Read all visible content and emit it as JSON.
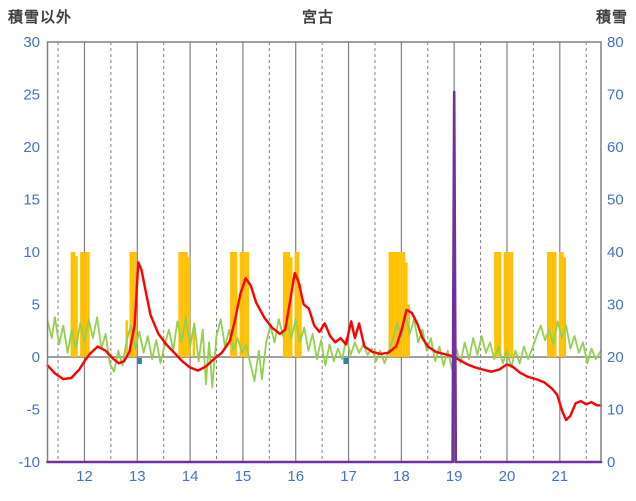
{
  "chart_data": {
    "type": "combo",
    "title": "宮古",
    "colors": {
      "background": "#FFFFFF",
      "grid": "#808080",
      "frame": "#808080",
      "tick_text": "#4472C4",
      "header_text": "#3F3F3F",
      "orange_bars": "#FFC000",
      "green_line": "#92D050",
      "red_line": "#FF0000",
      "purple_line": "#7030A0",
      "blue_marks": "#31859C"
    },
    "axis_left": {
      "label": "積雪以外",
      "min": -10,
      "max": 30,
      "ticks": [
        30,
        25,
        20,
        15,
        10,
        5,
        0,
        -5,
        -10
      ]
    },
    "axis_right": {
      "label": "積雪",
      "min": 0,
      "max": 80,
      "ticks": [
        80,
        70,
        60,
        50,
        40,
        30,
        20,
        10,
        0
      ]
    },
    "axis_x": {
      "min": 11.3,
      "max": 21.78,
      "ticks": [
        12,
        13,
        14,
        15,
        16,
        17,
        18,
        19,
        20,
        21
      ],
      "dashed_gridlines": [
        11.5,
        12.5,
        13.5,
        14.5,
        15.5,
        16.5,
        17.5,
        18.5,
        19.5,
        20.5,
        21.5
      ]
    },
    "series": {
      "orange_bars": {
        "type": "bar",
        "axis": "left",
        "color": "#FFC000",
        "bar_width_days": 0.045,
        "points": [
          [
            11.76,
            10
          ],
          [
            11.805,
            10
          ],
          [
            11.85,
            9.6
          ],
          [
            11.94,
            10
          ],
          [
            11.985,
            10
          ],
          [
            12.03,
            10
          ],
          [
            12.075,
            10
          ],
          [
            12.8,
            3.5
          ],
          [
            12.875,
            10
          ],
          [
            12.92,
            10
          ],
          [
            12.965,
            10
          ],
          [
            13.8,
            10
          ],
          [
            13.845,
            10
          ],
          [
            13.89,
            10
          ],
          [
            13.935,
            10
          ],
          [
            13.98,
            9.5
          ],
          [
            14.07,
            2.5
          ],
          [
            14.78,
            10
          ],
          [
            14.825,
            10
          ],
          [
            14.87,
            10
          ],
          [
            14.96,
            10
          ],
          [
            15.005,
            10
          ],
          [
            15.05,
            10
          ],
          [
            15.095,
            10
          ],
          [
            15.78,
            10
          ],
          [
            15.825,
            10
          ],
          [
            15.87,
            10
          ],
          [
            15.915,
            9.5
          ],
          [
            16.0,
            10
          ],
          [
            16.045,
            10
          ],
          [
            16.09,
            7
          ],
          [
            17.78,
            10
          ],
          [
            17.825,
            10
          ],
          [
            17.87,
            10
          ],
          [
            17.915,
            10
          ],
          [
            17.96,
            10
          ],
          [
            18.005,
            10
          ],
          [
            18.05,
            10
          ],
          [
            18.095,
            9
          ],
          [
            18.14,
            5
          ],
          [
            19.78,
            10
          ],
          [
            19.825,
            10
          ],
          [
            19.87,
            10
          ],
          [
            19.96,
            10
          ],
          [
            20.005,
            10
          ],
          [
            20.05,
            10
          ],
          [
            20.095,
            10
          ],
          [
            20.78,
            10
          ],
          [
            20.825,
            10
          ],
          [
            20.87,
            10
          ],
          [
            20.915,
            10
          ],
          [
            21.005,
            10
          ],
          [
            21.05,
            10
          ],
          [
            21.095,
            9.5
          ]
        ]
      },
      "green_line": {
        "type": "line",
        "axis": "left",
        "color": "#92D050",
        "width": 1.8,
        "points": [
          [
            11.3,
            3.5
          ],
          [
            11.38,
            1.8
          ],
          [
            11.44,
            3.8
          ],
          [
            11.52,
            1.2
          ],
          [
            11.6,
            3.0
          ],
          [
            11.68,
            0.4
          ],
          [
            11.76,
            2.6
          ],
          [
            11.84,
            0.8
          ],
          [
            11.92,
            3.2
          ],
          [
            12.0,
            1.4
          ],
          [
            12.08,
            3.6
          ],
          [
            12.16,
            1.8
          ],
          [
            12.24,
            3.8
          ],
          [
            12.32,
            0.8
          ],
          [
            12.4,
            2.2
          ],
          [
            12.48,
            -0.6
          ],
          [
            12.56,
            -1.4
          ],
          [
            12.64,
            0.6
          ],
          [
            12.72,
            -0.8
          ],
          [
            12.8,
            1.6
          ],
          [
            12.88,
            3.0
          ],
          [
            12.96,
            0.8
          ],
          [
            13.04,
            2.4
          ],
          [
            13.12,
            0.4
          ],
          [
            13.2,
            2.0
          ],
          [
            13.28,
            -0.2
          ],
          [
            13.36,
            1.6
          ],
          [
            13.44,
            -0.6
          ],
          [
            13.52,
            1.2
          ],
          [
            13.6,
            2.6
          ],
          [
            13.68,
            0.6
          ],
          [
            13.76,
            3.4
          ],
          [
            13.84,
            1.4
          ],
          [
            13.92,
            3.8
          ],
          [
            14.0,
            1.0
          ],
          [
            14.08,
            3.2
          ],
          [
            14.16,
            -0.4
          ],
          [
            14.24,
            2.6
          ],
          [
            14.3,
            -2.6
          ],
          [
            14.36,
            1.4
          ],
          [
            14.42,
            -2.9
          ],
          [
            14.5,
            2.0
          ],
          [
            14.58,
            3.6
          ],
          [
            14.66,
            1.0
          ],
          [
            14.74,
            2.6
          ],
          [
            14.82,
            0.6
          ],
          [
            14.9,
            1.8
          ],
          [
            14.98,
            0.4
          ],
          [
            15.06,
            1.2
          ],
          [
            15.14,
            -0.6
          ],
          [
            15.22,
            -2.3
          ],
          [
            15.3,
            0.6
          ],
          [
            15.36,
            -2.1
          ],
          [
            15.44,
            1.4
          ],
          [
            15.52,
            3.0
          ],
          [
            15.6,
            1.4
          ],
          [
            15.68,
            3.6
          ],
          [
            15.76,
            2.0
          ],
          [
            15.84,
            3.2
          ],
          [
            15.92,
            1.8
          ],
          [
            16.0,
            3.6
          ],
          [
            16.08,
            1.4
          ],
          [
            16.16,
            2.8
          ],
          [
            16.24,
            0.6
          ],
          [
            16.32,
            2.2
          ],
          [
            16.4,
            -0.2
          ],
          [
            16.48,
            1.6
          ],
          [
            16.56,
            -0.8
          ],
          [
            16.64,
            1.2
          ],
          [
            16.72,
            -0.4
          ],
          [
            16.8,
            0.8
          ],
          [
            16.88,
            -0.2
          ],
          [
            16.96,
            1.8
          ],
          [
            17.04,
            0.2
          ],
          [
            17.12,
            1.4
          ],
          [
            17.2,
            0.4
          ],
          [
            17.28,
            1.2
          ],
          [
            17.36,
            0.2
          ],
          [
            17.44,
            0.8
          ],
          [
            17.52,
            -0.4
          ],
          [
            17.6,
            0.6
          ],
          [
            17.68,
            -0.6
          ],
          [
            17.76,
            0.6
          ],
          [
            17.84,
            1.6
          ],
          [
            17.92,
            3.2
          ],
          [
            18.0,
            1.8
          ],
          [
            18.08,
            4.0
          ],
          [
            18.16,
            2.2
          ],
          [
            18.24,
            3.6
          ],
          [
            18.32,
            1.4
          ],
          [
            18.4,
            2.6
          ],
          [
            18.48,
            0.6
          ],
          [
            18.56,
            1.8
          ],
          [
            18.64,
            -0.4
          ],
          [
            18.72,
            1.0
          ],
          [
            18.8,
            -0.8
          ],
          [
            18.88,
            0.6
          ],
          [
            18.96,
            -1.2
          ],
          [
            19.04,
            0.8
          ],
          [
            19.12,
            -0.6
          ],
          [
            19.2,
            1.4
          ],
          [
            19.28,
            -0.2
          ],
          [
            19.36,
            1.8
          ],
          [
            19.44,
            0.2
          ],
          [
            19.52,
            2.0
          ],
          [
            19.6,
            0.4
          ],
          [
            19.68,
            1.4
          ],
          [
            19.76,
            -0.2
          ],
          [
            19.84,
            1.0
          ],
          [
            19.92,
            -0.6
          ],
          [
            20.0,
            0.6
          ],
          [
            20.08,
            -1.0
          ],
          [
            20.16,
            0.6
          ],
          [
            20.24,
            -0.6
          ],
          [
            20.32,
            1.0
          ],
          [
            20.4,
            -0.2
          ],
          [
            20.48,
            0.8
          ],
          [
            20.56,
            2.0
          ],
          [
            20.64,
            3.0
          ],
          [
            20.72,
            1.6
          ],
          [
            20.8,
            2.6
          ],
          [
            20.88,
            1.2
          ],
          [
            20.96,
            3.4
          ],
          [
            21.04,
            1.8
          ],
          [
            21.12,
            3.0
          ],
          [
            21.2,
            0.8
          ],
          [
            21.28,
            2.0
          ],
          [
            21.36,
            0.4
          ],
          [
            21.44,
            1.4
          ],
          [
            21.52,
            -0.6
          ],
          [
            21.6,
            0.8
          ],
          [
            21.68,
            -0.2
          ],
          [
            21.78,
            0.6
          ]
        ]
      },
      "red_line": {
        "type": "line",
        "axis": "left",
        "color": "#FF0000",
        "width": 2.4,
        "points": [
          [
            11.3,
            -0.8
          ],
          [
            11.45,
            -1.6
          ],
          [
            11.6,
            -2.1
          ],
          [
            11.75,
            -2.0
          ],
          [
            11.9,
            -1.2
          ],
          [
            12.0,
            -0.4
          ],
          [
            12.1,
            0.3
          ],
          [
            12.25,
            1.0
          ],
          [
            12.4,
            0.6
          ],
          [
            12.55,
            -0.2
          ],
          [
            12.65,
            -0.6
          ],
          [
            12.75,
            -0.4
          ],
          [
            12.85,
            0.5
          ],
          [
            12.95,
            3.0
          ],
          [
            13.02,
            9.0
          ],
          [
            13.08,
            8.3
          ],
          [
            13.15,
            6.5
          ],
          [
            13.25,
            4.0
          ],
          [
            13.4,
            2.2
          ],
          [
            13.55,
            1.2
          ],
          [
            13.7,
            0.4
          ],
          [
            13.85,
            -0.4
          ],
          [
            14.0,
            -1.0
          ],
          [
            14.15,
            -1.3
          ],
          [
            14.3,
            -0.9
          ],
          [
            14.45,
            -0.2
          ],
          [
            14.6,
            0.4
          ],
          [
            14.75,
            1.5
          ],
          [
            14.85,
            3.5
          ],
          [
            14.95,
            6.0
          ],
          [
            15.05,
            7.5
          ],
          [
            15.15,
            6.8
          ],
          [
            15.25,
            5.2
          ],
          [
            15.4,
            3.8
          ],
          [
            15.55,
            2.8
          ],
          [
            15.7,
            2.2
          ],
          [
            15.8,
            2.6
          ],
          [
            15.9,
            5.5
          ],
          [
            15.98,
            8.0
          ],
          [
            16.05,
            7.2
          ],
          [
            16.15,
            5.0
          ],
          [
            16.25,
            4.6
          ],
          [
            16.35,
            3.0
          ],
          [
            16.45,
            2.4
          ],
          [
            16.55,
            3.2
          ],
          [
            16.65,
            2.0
          ],
          [
            16.75,
            1.4
          ],
          [
            16.85,
            1.8
          ],
          [
            16.95,
            1.2
          ],
          [
            17.05,
            3.4
          ],
          [
            17.12,
            1.8
          ],
          [
            17.2,
            3.2
          ],
          [
            17.3,
            1.0
          ],
          [
            17.45,
            0.5
          ],
          [
            17.6,
            0.3
          ],
          [
            17.75,
            0.4
          ],
          [
            17.9,
            1.0
          ],
          [
            18.0,
            2.5
          ],
          [
            18.1,
            4.5
          ],
          [
            18.2,
            4.2
          ],
          [
            18.3,
            3.2
          ],
          [
            18.4,
            1.8
          ],
          [
            18.5,
            1.0
          ],
          [
            18.65,
            0.5
          ],
          [
            18.8,
            0.3
          ],
          [
            18.95,
            0.1
          ],
          [
            19.1,
            -0.3
          ],
          [
            19.25,
            -0.7
          ],
          [
            19.4,
            -1.0
          ],
          [
            19.55,
            -1.2
          ],
          [
            19.7,
            -1.4
          ],
          [
            19.85,
            -1.2
          ],
          [
            20.0,
            -0.7
          ],
          [
            20.1,
            -0.9
          ],
          [
            20.25,
            -1.5
          ],
          [
            20.4,
            -1.9
          ],
          [
            20.55,
            -2.1
          ],
          [
            20.7,
            -2.4
          ],
          [
            20.85,
            -3.0
          ],
          [
            20.95,
            -3.6
          ],
          [
            21.05,
            -5.2
          ],
          [
            21.12,
            -6.0
          ],
          [
            21.2,
            -5.6
          ],
          [
            21.3,
            -4.4
          ],
          [
            21.4,
            -4.2
          ],
          [
            21.5,
            -4.5
          ],
          [
            21.6,
            -4.3
          ],
          [
            21.7,
            -4.6
          ],
          [
            21.78,
            -4.6
          ]
        ]
      },
      "blue_marks": {
        "type": "mark",
        "axis": "left",
        "color": "#31859C",
        "points": [
          [
            13.04,
            -0.5
          ],
          [
            16.95,
            -0.5
          ]
        ]
      },
      "purple_line": {
        "type": "line",
        "axis": "right",
        "color": "#7030A0",
        "width": 2.6,
        "points": [
          [
            11.3,
            0
          ],
          [
            18.97,
            0
          ],
          [
            19.0,
            70.5
          ],
          [
            19.03,
            0
          ],
          [
            21.78,
            0
          ]
        ]
      }
    }
  }
}
